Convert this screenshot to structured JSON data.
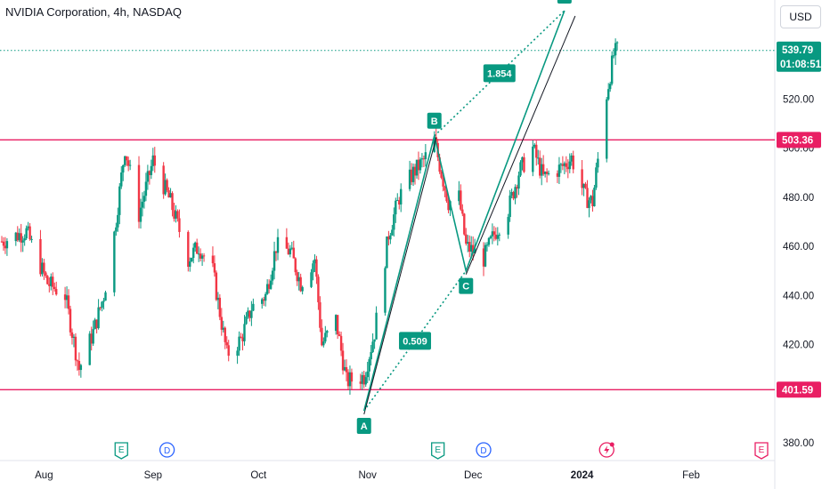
{
  "header": {
    "title": "NVIDIA Corporation, 4h, NASDAQ",
    "currency": "USD"
  },
  "colors": {
    "up": "#089981",
    "down": "#f23645",
    "hline": "#e91e63",
    "pattern": "#089981",
    "axis_text": "#131722"
  },
  "chart_data": {
    "type": "candlestick",
    "title": "NVIDIA Corporation, 4h, NASDAQ",
    "ylim": [
      372,
      556
    ],
    "x_ticks": [
      "Aug",
      "Sep",
      "Oct",
      "Nov",
      "Dec",
      "2024",
      "Feb"
    ],
    "y_ticks": [
      "380.00",
      "400.00",
      "420.00",
      "440.00",
      "460.00",
      "480.00",
      "500.00",
      "520.00"
    ],
    "last_price": "539.79",
    "countdown": "01:08:51",
    "horizontal_lines": [
      {
        "label": "503.36",
        "value": 503.36
      },
      {
        "label": "401.59",
        "value": 401.59
      }
    ],
    "harmonic_pattern": {
      "points": [
        {
          "label": "A",
          "date": "2023-10-31",
          "value": 393
        },
        {
          "label": "B",
          "date": "2023-11-20",
          "value": 505
        },
        {
          "label": "C",
          "date": "2023-11-29",
          "value": 450
        },
        {
          "label": "D",
          "date": "2023-12-27",
          "value": 556
        }
      ],
      "ratios": [
        "0.509",
        "1.854"
      ]
    },
    "event_markers": [
      {
        "type": "E",
        "date": "2023-08-23"
      },
      {
        "type": "D",
        "date": "2023-09-05"
      },
      {
        "type": "E",
        "date": "2023-11-21"
      },
      {
        "type": "D",
        "date": "2023-12-04"
      },
      {
        "type": "split",
        "date": "2024-01-08"
      },
      {
        "type": "E",
        "date": "2024-02-21"
      }
    ],
    "price_path": [
      [
        "2023-07-20",
        462
      ],
      [
        "2023-07-27",
        466
      ],
      [
        "2023-08-02",
        445
      ],
      [
        "2023-08-07",
        440
      ],
      [
        "2023-08-11",
        410
      ],
      [
        "2023-08-15",
        425
      ],
      [
        "2023-08-18",
        440
      ],
      [
        "2023-08-21",
        465
      ],
      [
        "2023-08-24",
        500
      ],
      [
        "2023-08-28",
        473
      ],
      [
        "2023-09-01",
        495
      ],
      [
        "2023-09-06",
        478
      ],
      [
        "2023-09-11",
        455
      ],
      [
        "2023-09-14",
        460
      ],
      [
        "2023-09-18",
        450
      ],
      [
        "2023-09-22",
        416
      ],
      [
        "2023-09-26",
        422
      ],
      [
        "2023-09-29",
        435
      ],
      [
        "2023-10-03",
        440
      ],
      [
        "2023-10-06",
        460
      ],
      [
        "2023-10-10",
        458
      ],
      [
        "2023-10-13",
        445
      ],
      [
        "2023-10-17",
        455
      ],
      [
        "2023-10-19",
        420
      ],
      [
        "2023-10-23",
        430
      ],
      [
        "2023-10-26",
        405
      ],
      [
        "2023-10-31",
        407
      ],
      [
        "2023-11-03",
        425
      ],
      [
        "2023-11-07",
        465
      ],
      [
        "2023-11-10",
        480
      ],
      [
        "2023-11-14",
        490
      ],
      [
        "2023-11-17",
        495
      ],
      [
        "2023-11-20",
        503
      ],
      [
        "2023-11-22",
        490
      ],
      [
        "2023-11-24",
        478
      ],
      [
        "2023-11-27",
        480
      ],
      [
        "2023-11-29",
        460
      ],
      [
        "2023-12-04",
        455
      ],
      [
        "2023-12-07",
        465
      ],
      [
        "2023-12-11",
        475
      ],
      [
        "2023-12-14",
        490
      ],
      [
        "2023-12-18",
        500
      ],
      [
        "2023-12-21",
        488
      ],
      [
        "2023-12-26",
        492
      ],
      [
        "2023-12-29",
        496
      ],
      [
        "2024-01-02",
        480
      ],
      [
        "2024-01-04",
        478
      ],
      [
        "2024-01-05",
        490
      ],
      [
        "2024-01-08",
        522
      ],
      [
        "2024-01-09",
        530
      ],
      [
        "2024-01-10",
        538
      ],
      [
        "2024-01-11",
        539.79
      ]
    ]
  }
}
